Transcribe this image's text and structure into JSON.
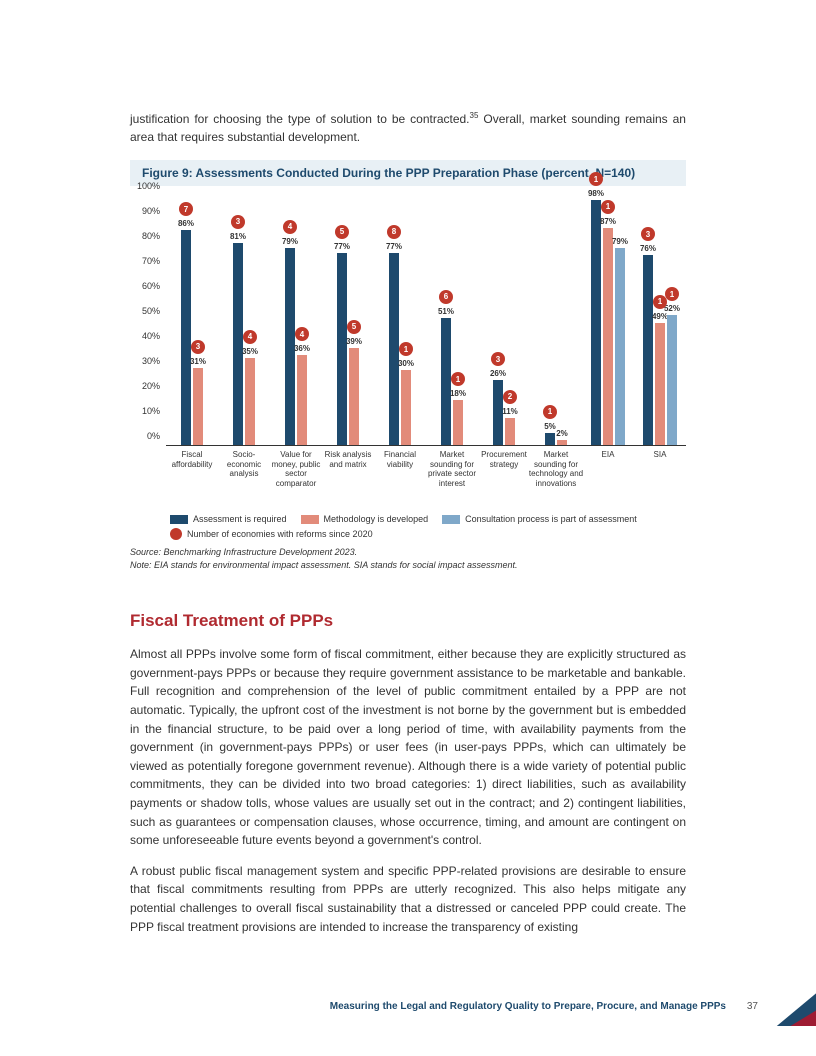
{
  "intro": {
    "text_before_sup": "justification for choosing the type of solution to be contracted.",
    "sup": "35",
    "text_after_sup": " Overall, market sounding remains an area that requires substantial development."
  },
  "figure": {
    "title": "Figure 9: Assessments Conducted During the PPP Preparation Phase (percent, N=140)",
    "colors": {
      "required": "#1e4a6d",
      "methodology": "#e28b7a",
      "consultation": "#7fa8c9",
      "badge": "#c0392b",
      "title_bg": "#e8f0f5"
    },
    "y": {
      "min": 0,
      "max": 100,
      "step": 10,
      "suffix": "%"
    },
    "categories": [
      {
        "label": "Fiscal affordability",
        "required": 86,
        "methodology": 31,
        "consultation": null,
        "badges": [
          {
            "on": "required",
            "n": 7
          },
          {
            "on": "methodology",
            "n": 3
          }
        ]
      },
      {
        "label": "Socio-economic analysis",
        "required": 81,
        "methodology": 35,
        "consultation": null,
        "badges": [
          {
            "on": "required",
            "n": 3
          },
          {
            "on": "methodology",
            "n": 4
          }
        ]
      },
      {
        "label": "Value for money, public sector comparator",
        "required": 79,
        "methodology": 36,
        "consultation": null,
        "badges": [
          {
            "on": "required",
            "n": 4
          },
          {
            "on": "methodology",
            "n": 4
          }
        ]
      },
      {
        "label": "Risk analysis and matrix",
        "required": 77,
        "methodology": 39,
        "consultation": null,
        "badges": [
          {
            "on": "required",
            "n": 5
          },
          {
            "on": "methodology",
            "n": 5
          }
        ]
      },
      {
        "label": "Financial viability",
        "required": 77,
        "methodology": 30,
        "consultation": null,
        "badges": [
          {
            "on": "required",
            "n": 8
          },
          {
            "on": "methodology",
            "n": 1
          }
        ]
      },
      {
        "label": "Market sounding for private sector interest",
        "required": 51,
        "methodology": 18,
        "consultation": null,
        "badges": [
          {
            "on": "required",
            "n": 6
          },
          {
            "on": "methodology",
            "n": 1
          }
        ]
      },
      {
        "label": "Procurement strategy",
        "required": 26,
        "methodology": 11,
        "consultation": null,
        "badges": [
          {
            "on": "required",
            "n": 3
          },
          {
            "on": "methodology",
            "n": 2
          }
        ]
      },
      {
        "label": "Market sounding for technology and innovations",
        "required": 5,
        "methodology": 2,
        "consultation": null,
        "badges": [
          {
            "on": "required",
            "n": 1
          }
        ]
      },
      {
        "label": "EIA",
        "required": 98,
        "methodology": 87,
        "consultation": 79,
        "badges": [
          {
            "on": "required",
            "n": 1
          },
          {
            "on": "methodology",
            "n": 1
          }
        ]
      },
      {
        "label": "SIA",
        "required": 76,
        "methodology": 49,
        "consultation": 52,
        "badges": [
          {
            "on": "required",
            "n": 3
          },
          {
            "on": "methodology",
            "n": 1
          },
          {
            "on": "consultation",
            "n": 1
          }
        ]
      }
    ],
    "legend": {
      "required": "Assessment is required",
      "methodology": "Methodology is developed",
      "consultation": "Consultation process is part of assessment",
      "badge": "Number of economies with reforms since 2020"
    },
    "source": "Benchmarking Infrastructure Development 2023.",
    "note": "EIA stands for environmental impact assessment. SIA stands for social impact assessment."
  },
  "section": {
    "heading": "Fiscal Treatment of PPPs",
    "para1": "Almost all PPPs involve some form of fiscal commitment, either because they are explicitly structured as government-pays PPPs or because they require government assistance to be marketable and bankable. Full recognition and comprehension of the level of public commitment entailed by a PPP are not automatic. Typically, the upfront cost of the investment is not borne by the government but is embedded in the financial structure, to be paid over a long period of time, with availability payments from the government (in government-pays PPPs) or user fees (in user-pays PPPs, which can ultimately be viewed as potentially foregone government revenue). Although there is a wide variety of potential public commitments, they can be divided into two broad categories: 1) direct liabilities, such as availability payments or shadow tolls, whose values are usually set out in the contract; and 2) contingent liabilities, such as guarantees or compensation clauses, whose occurrence, timing, and amount are contingent on some unforeseeable future events beyond a government's control.",
    "para2": "A robust public fiscal management system and specific PPP-related provisions are desirable to ensure that fiscal commitments resulting from PPPs are utterly recognized. This also helps mitigate any potential challenges to overall fiscal sustainability that a distressed or canceled PPP could create. The PPP fiscal treatment provisions are intended to increase the transparency of existing"
  },
  "footer": {
    "text": "Measuring the Legal and Regulatory Quality to Prepare, Procure, and Manage PPPs",
    "page": "37"
  }
}
